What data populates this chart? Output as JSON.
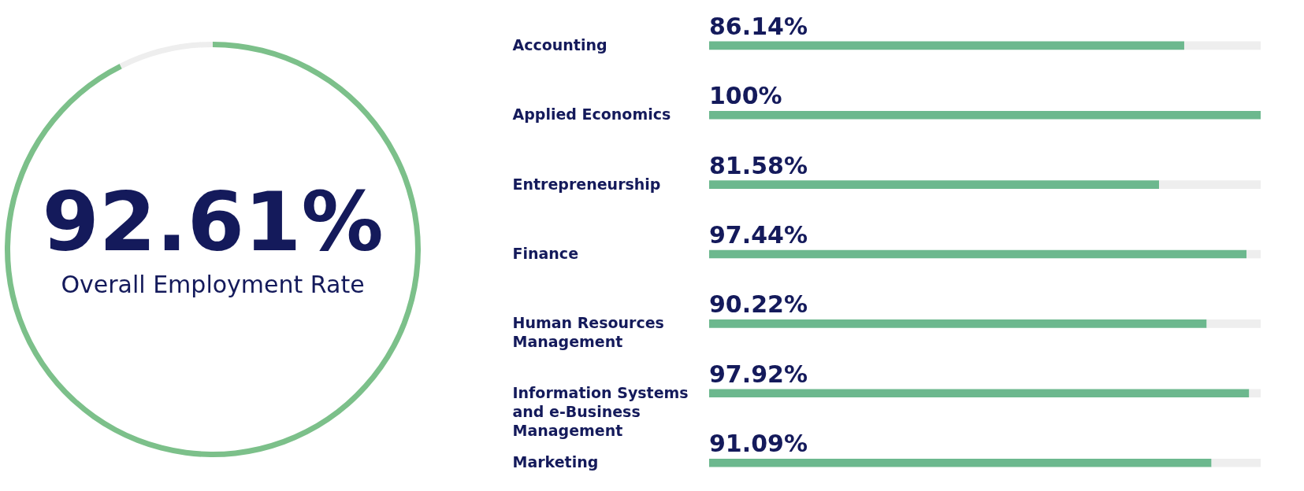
{
  "chart_data": [
    {
      "type": "donut",
      "title": "Overall Employment Rate",
      "categories": [
        null,
        null
      ],
      "values": [
        92.61,
        7.39
      ],
      "colors": [
        "#7cc08a",
        "#eeeeee"
      ],
      "value_labels": [
        "92.61%",
        null
      ]
    },
    {
      "type": "bar",
      "orientation": "horizontal",
      "categories": [
        "Accounting",
        "Applied Economics",
        "Entrepreneurship",
        "Finance",
        "Human Resources Management",
        "Information Systems and e-Business Management",
        "Marketing"
      ],
      "values": [
        86.14,
        100,
        81.58,
        97.44,
        90.22,
        97.92,
        91.09
      ],
      "value_labels": [
        "86.14%",
        "100%",
        "81.58%",
        "97.44%",
        "90.22%",
        "97.92%",
        "91.09%"
      ],
      "color": "#6cb88e",
      "xlim": [
        0,
        100
      ]
    }
  ]
}
